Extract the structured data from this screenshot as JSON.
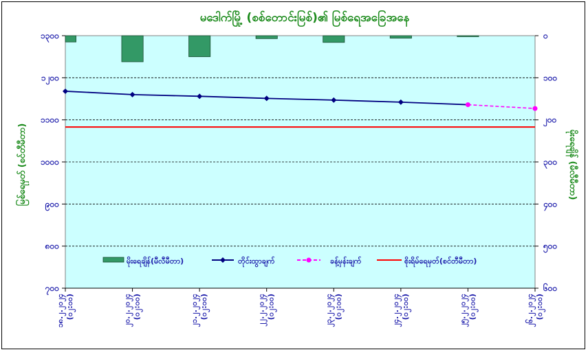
{
  "chart_data": {
    "type": "bar+line",
    "title": "မဒေါက်မြို့ (စစ်တောင်းမြစ်)၏ မြစ်ရေအခြေအနေ",
    "ylabel_left": "မြစ်ရေမှတ် (စင်တီမီတာ)",
    "ylabel_right": "မိုးရေချိန် (မီလီမီတာ)",
    "categories": [
      [
        "၁၈.၂.၂၀၂၄",
        "(၀၂:၀၀)"
      ],
      [
        "၂၀.၂.၂၀၂၄",
        "(၀၂:၀၀)"
      ],
      [
        "၂၁.၂.၂၀၂၄",
        "(၀၂:၀၀)"
      ],
      [
        "၂၂.၂.၂၀၂၄",
        "(၀၂:၀၀)"
      ],
      [
        "၂၃.၂.၂၀၂၄",
        "(၀၂:၀၀)"
      ],
      [
        "၂၄.၂.၂၀၂၄",
        "(၀၂:၀၀)"
      ],
      [
        "၂၅.၂.၂၀၂၄",
        "(၀၂:၀၀)"
      ],
      [
        "၂၆.၂.၂၀၂၄",
        "(၀၂:၀၀)"
      ]
    ],
    "left_axis": {
      "min": 700,
      "max": 1300,
      "step": 100,
      "tick_labels": [
        "၇၀၀",
        "၈၀၀",
        "၉၀၀",
        "၁၀၀၀",
        "၁၁၀၀",
        "၁၂၀၀",
        "၁၃၀၀"
      ]
    },
    "right_axis": {
      "min": 0,
      "max": 600,
      "step": 100,
      "reversed": true,
      "tick_labels": [
        "၀",
        "၁၀၀",
        "၂၀၀",
        "၃၀၀",
        "၄၀၀",
        "၅၀၀",
        "၆၀၀"
      ]
    },
    "rainfall_mm": [
      15,
      62,
      50,
      7,
      16,
      6,
      1,
      0
    ],
    "water_level_cm": [
      1168,
      1160,
      1156,
      1151,
      1147,
      1142,
      1136
    ],
    "forecast_cm": [
      null,
      null,
      null,
      null,
      null,
      null,
      1136,
      1127
    ],
    "danger_level_cm": 1083,
    "grid": true,
    "legend_position": "bottom-inside",
    "legend": [
      "မိုးရေချိန်(မီလီမီတာ)",
      "တိုင်းထွာချက်",
      "ခန့်မှန်းချက်",
      "စိုးရိမ်ရေမှတ်(စင်တီမီတာ)"
    ],
    "colors": {
      "plot_bg": "#ccffff",
      "bars": "#339966",
      "observed": "#000080",
      "forecast": "#ff00ff",
      "danger": "#ff0000",
      "text_title": "#1a8a1a",
      "text_axis": "#1a1aaa"
    }
  }
}
